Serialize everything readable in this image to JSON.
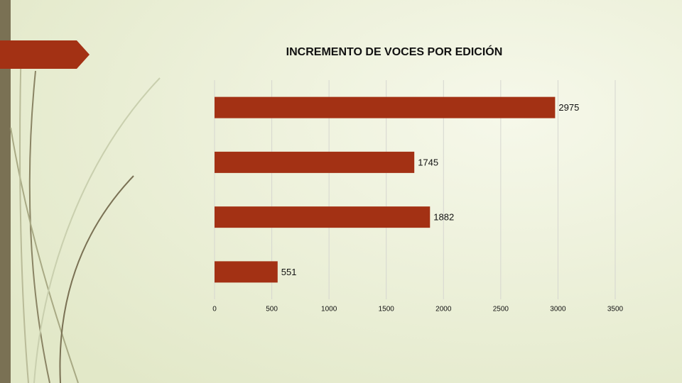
{
  "chart_data": {
    "type": "bar",
    "orientation": "horizontal",
    "title": "INCREMENTO DE VOCES POR EDICIÓN",
    "categories": [
      null,
      null,
      null,
      null
    ],
    "values": [
      2975,
      1745,
      1882,
      551
    ],
    "color": "#a33114",
    "xlim": [
      0,
      3500
    ],
    "xticks": [
      0,
      500,
      1000,
      1500,
      2000,
      2500,
      3000,
      3500
    ],
    "grid": true
  }
}
